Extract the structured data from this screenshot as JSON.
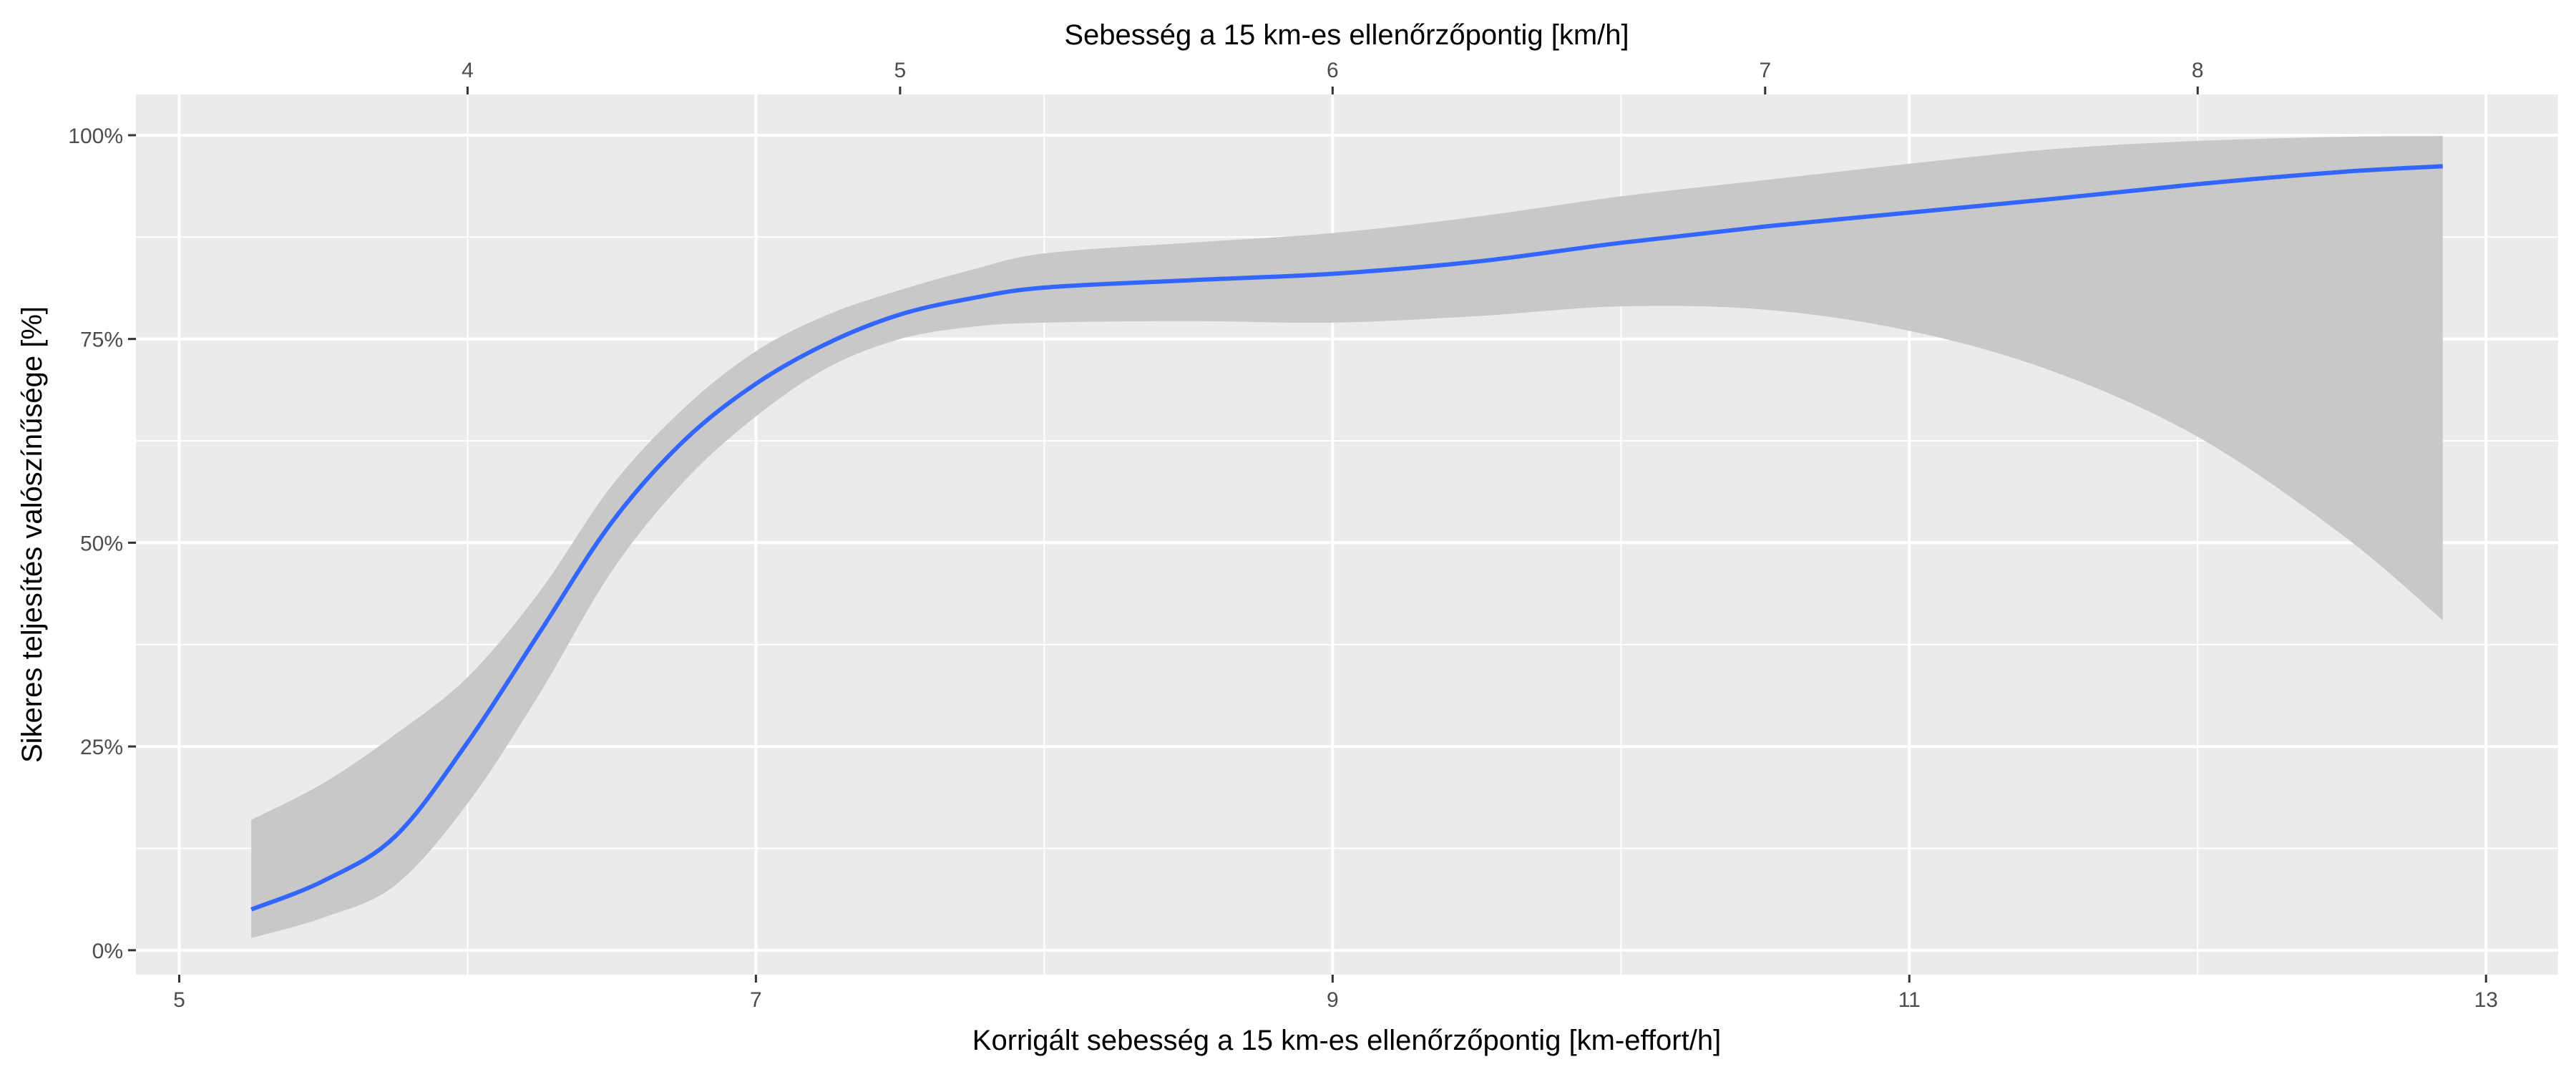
{
  "chart_data": {
    "type": "line",
    "title": "",
    "xlabel": "Korrigált sebesség a 15 km-es ellenőrzőpontig [km-effort/h]",
    "x2label": "Sebesség a 15 km-es ellenőrzőpontig [km/h]",
    "ylabel": "Sikeres teljesítés valószínűsége [%]",
    "xlim": [
      4.85,
      13.25
    ],
    "ylim": [
      -0.03,
      1.05
    ],
    "x_ticks": [
      5,
      7,
      9,
      11,
      13
    ],
    "x_tick_labels": [
      "5",
      "7",
      "9",
      "11",
      "13"
    ],
    "x2_ticks": [
      4,
      5,
      6,
      7,
      8
    ],
    "x2_tick_labels": [
      "4",
      "5",
      "6",
      "7",
      "8"
    ],
    "x2_to_x": {
      "at_x2": 4,
      "equals_x": 6.0,
      "x_per_x2_unit": 1.5
    },
    "y_ticks": [
      0,
      0.25,
      0.5,
      0.75,
      1.0
    ],
    "y_tick_labels": [
      "0%",
      "25%",
      "50%",
      "75%",
      "100%"
    ],
    "grid": true,
    "colors": {
      "panel": "#ebebeb",
      "grid": "#ffffff",
      "line": "#3366ff",
      "band": "#c8c8c8"
    },
    "series": [
      {
        "x": [
          5.25,
          5.5,
          5.75,
          6.0,
          6.25,
          6.5,
          6.75,
          7.0,
          7.25,
          7.5,
          7.75,
          8.0,
          8.5,
          9.0,
          9.5,
          10.0,
          10.5,
          11.0,
          11.5,
          12.0,
          12.5,
          12.85
        ],
        "y": [
          0.05,
          0.085,
          0.14,
          0.255,
          0.39,
          0.525,
          0.625,
          0.695,
          0.745,
          0.78,
          0.8,
          0.813,
          0.822,
          0.83,
          0.845,
          0.868,
          0.888,
          0.905,
          0.922,
          0.94,
          0.955,
          0.962
        ],
        "ci_low": [
          0.015,
          0.04,
          0.08,
          0.18,
          0.315,
          0.465,
          0.575,
          0.655,
          0.715,
          0.75,
          0.765,
          0.77,
          0.772,
          0.77,
          0.778,
          0.79,
          0.786,
          0.76,
          0.71,
          0.63,
          0.51,
          0.405
        ],
        "ci_high": [
          0.16,
          0.205,
          0.265,
          0.335,
          0.44,
          0.57,
          0.665,
          0.735,
          0.78,
          0.81,
          0.835,
          0.855,
          0.868,
          0.88,
          0.9,
          0.925,
          0.945,
          0.965,
          0.983,
          0.993,
          0.998,
          0.999
        ]
      }
    ]
  }
}
